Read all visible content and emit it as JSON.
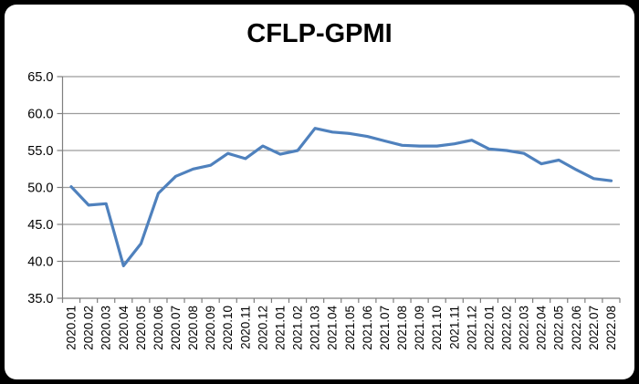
{
  "frame": {
    "background_color": "#000000",
    "canvas_color": "#FFFFFF"
  },
  "chart_data": {
    "type": "line",
    "title": "CFLP-GPMI",
    "categories": [
      "2020.01",
      "2020.02",
      "2020.03",
      "2020.04",
      "2020.05",
      "2020.06",
      "2020.07",
      "2020.08",
      "2020.09",
      "2020.10",
      "2020.11",
      "2020.12",
      "2021.01",
      "2021.02",
      "2021.03",
      "2021.04",
      "2021.05",
      "2021.06",
      "2021.07",
      "2021.08",
      "2021.09",
      "2021.10",
      "2021.11",
      "2021.12",
      "2022.01",
      "2022.02",
      "2022.03",
      "2022.04",
      "2022.05",
      "2022.06",
      "2022.07",
      "2022.08"
    ],
    "series": [
      {
        "name": "CFLP-GPMI",
        "color": "#4F81BD",
        "values": [
          50.1,
          47.6,
          47.8,
          39.4,
          42.4,
          49.2,
          51.5,
          52.5,
          53.0,
          54.6,
          53.9,
          55.6,
          54.5,
          55.0,
          58.0,
          57.5,
          57.3,
          56.9,
          56.3,
          55.7,
          55.6,
          55.6,
          55.9,
          56.4,
          55.2,
          55.0,
          54.6,
          53.2,
          53.7,
          52.4,
          51.2,
          50.9
        ]
      }
    ],
    "xlabel": "",
    "ylabel": "",
    "ylim": [
      35,
      65
    ],
    "ytick_step": 5,
    "ytick_labels": [
      "65.0",
      "60.0",
      "55.0",
      "50.0",
      "45.0",
      "40.0",
      "35.0"
    ],
    "grid": true,
    "legend": "none",
    "gridline_color": "#9C9C9C",
    "axis_color": "#7F7F7F",
    "text_color": "#000000",
    "line_width": 3.2
  }
}
